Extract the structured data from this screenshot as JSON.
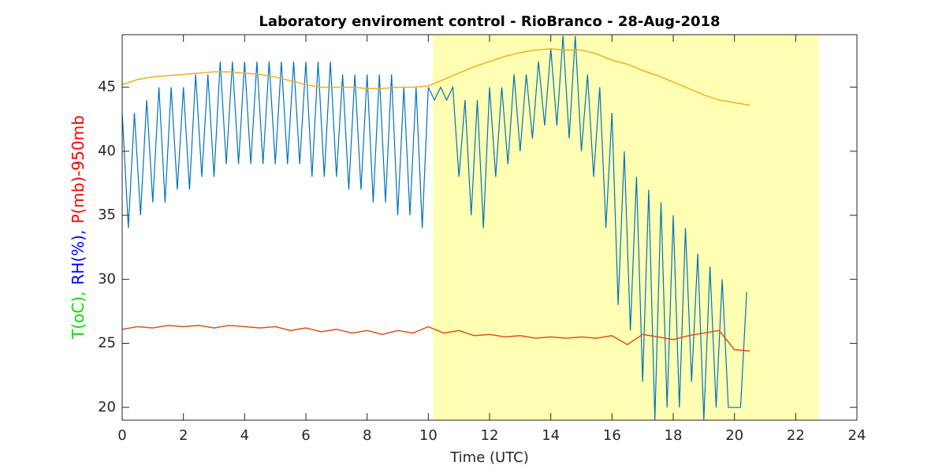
{
  "chart_data": {
    "type": "line",
    "title": "Laboratory enviroment control - RioBranco - 28-Aug-2018",
    "xlabel": "Time (UTC)",
    "ylabel_parts": [
      {
        "text": "T(oC),",
        "color": "#00e000"
      },
      {
        "text": "RH(%),",
        "color": "#0000ff"
      },
      {
        "text": "P(mb)-950mb",
        "color": "#ff0000"
      }
    ],
    "xlim": [
      0,
      24
    ],
    "ylim": [
      19,
      49.1
    ],
    "xticks": [
      0,
      2,
      4,
      6,
      8,
      10,
      12,
      14,
      16,
      18,
      20,
      22,
      24
    ],
    "yticks": [
      20,
      25,
      30,
      35,
      40,
      45
    ],
    "highlight": {
      "range": [
        10.15,
        22.75
      ],
      "color": "#ffffb3"
    },
    "series": [
      {
        "color": "#0072bd",
        "x": [
          0,
          0.2,
          0.4,
          0.6,
          0.8,
          1,
          1.2,
          1.4,
          1.6,
          1.8,
          2,
          2.2,
          2.4,
          2.6,
          2.8,
          3,
          3.2,
          3.4,
          3.6,
          3.8,
          4,
          4.2,
          4.4,
          4.6,
          4.8,
          5,
          5.2,
          5.4,
          5.6,
          5.8,
          6,
          6.2,
          6.4,
          6.6,
          6.8,
          7,
          7.2,
          7.4,
          7.6,
          7.8,
          8,
          8.2,
          8.4,
          8.6,
          8.8,
          9,
          9.2,
          9.4,
          9.6,
          9.8,
          10,
          10.2,
          10.4,
          10.6,
          10.8,
          11,
          11.2,
          11.4,
          11.6,
          11.8,
          12,
          12.2,
          12.4,
          12.6,
          12.8,
          13,
          13.2,
          13.4,
          13.6,
          13.8,
          14,
          14.2,
          14.4,
          14.6,
          14.8,
          15,
          15.2,
          15.4,
          15.6,
          15.8,
          16,
          16.2,
          16.4,
          16.6,
          16.8,
          17,
          17.2,
          17.4,
          17.6,
          17.8,
          18,
          18.2,
          18.4,
          18.6,
          18.8,
          19,
          19.2,
          19.4,
          19.6,
          19.8,
          20,
          20.2,
          20.4
        ],
        "values": [
          43,
          34,
          43,
          35,
          44,
          36,
          45,
          36,
          45,
          37,
          45,
          37,
          46,
          38,
          46,
          38,
          47,
          39,
          47,
          39,
          47,
          39,
          47,
          39,
          47,
          39,
          47,
          39,
          47,
          39,
          47,
          38,
          47,
          38,
          47,
          38,
          46,
          37,
          46,
          37,
          46,
          36,
          46,
          36,
          46,
          35,
          45,
          35,
          45,
          34,
          45,
          44,
          45,
          44,
          45,
          38,
          44,
          35,
          44,
          34,
          45,
          38,
          45,
          39,
          46,
          40,
          46,
          41,
          47,
          42,
          48,
          42,
          49,
          41,
          49,
          40,
          46,
          38,
          45,
          34,
          43,
          28,
          40,
          26,
          38,
          22,
          37,
          19,
          36,
          20,
          35,
          20,
          34,
          22,
          32,
          19,
          31,
          20,
          30,
          20,
          20,
          20,
          29
        ]
      },
      {
        "color": "#d95319",
        "x": [
          0,
          0.5,
          1,
          1.5,
          2,
          2.5,
          3,
          3.5,
          4,
          4.5,
          5,
          5.5,
          6,
          6.5,
          7,
          7.5,
          8,
          8.5,
          9,
          9.5,
          10,
          10.5,
          11,
          11.5,
          12,
          12.5,
          13,
          13.5,
          14,
          14.5,
          15,
          15.5,
          16,
          16.5,
          17,
          17.5,
          18,
          18.5,
          19,
          19.5,
          20,
          20.5
        ],
        "values": [
          26.1,
          26.3,
          26.2,
          26.4,
          26.3,
          26.4,
          26.2,
          26.4,
          26.3,
          26.2,
          26.3,
          26.0,
          26.2,
          25.9,
          26.1,
          25.8,
          26.0,
          25.7,
          26.0,
          25.8,
          26.3,
          25.8,
          26.0,
          25.6,
          25.7,
          25.5,
          25.6,
          25.4,
          25.5,
          25.4,
          25.5,
          25.4,
          25.6,
          24.9,
          25.7,
          25.5,
          25.3,
          25.6,
          25.8,
          26.0,
          24.5,
          24.4
        ]
      },
      {
        "color": "#edb120",
        "x": [
          0,
          0.5,
          1,
          1.5,
          2,
          2.5,
          3,
          3.5,
          4,
          4.5,
          5,
          5.5,
          6,
          6.5,
          7,
          7.5,
          8,
          8.5,
          9,
          9.5,
          10,
          10.5,
          11,
          11.5,
          12,
          12.5,
          13,
          13.5,
          14,
          14.5,
          15,
          15.5,
          16,
          16.5,
          17,
          17.5,
          18,
          18.5,
          19,
          19.5,
          20,
          20.5
        ],
        "values": [
          45.2,
          45.6,
          45.8,
          45.9,
          46.0,
          46.1,
          46.2,
          46.2,
          46.1,
          46.0,
          45.8,
          45.5,
          45.2,
          45.0,
          45.0,
          45.0,
          44.9,
          44.9,
          45.0,
          45.0,
          45.1,
          45.6,
          46.1,
          46.6,
          47.0,
          47.4,
          47.7,
          47.9,
          48.0,
          47.9,
          47.9,
          47.6,
          47.1,
          46.8,
          46.3,
          45.9,
          45.4,
          44.9,
          44.4,
          44.0,
          43.8,
          43.6
        ]
      }
    ]
  }
}
